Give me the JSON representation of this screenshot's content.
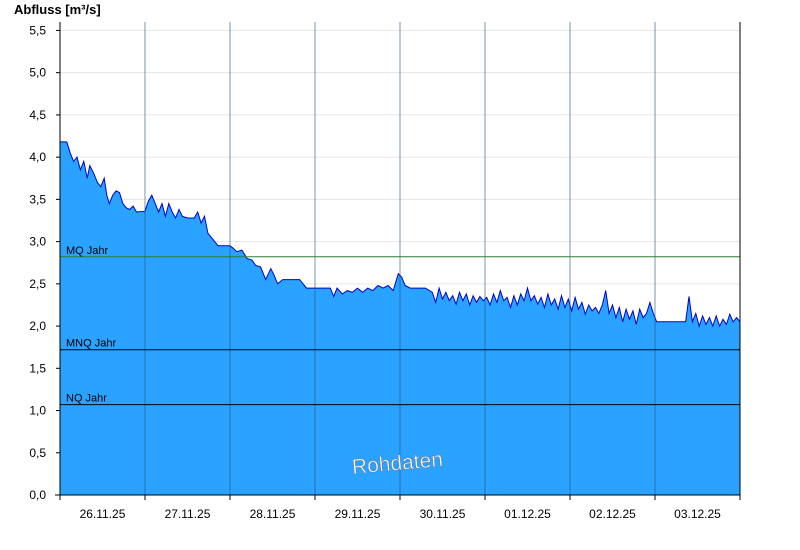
{
  "chart_data": {
    "type": "area",
    "ylabel": "Abfluss [m³/s]",
    "ylim": [
      0,
      5.6
    ],
    "y_ticks": [
      0,
      0.5,
      1.0,
      1.5,
      2.0,
      2.5,
      3.0,
      3.5,
      4.0,
      4.5,
      5.0,
      5.5
    ],
    "y_tick_labels": [
      "0,0",
      "0,5",
      "1,0",
      "1,5",
      "2,0",
      "2,5",
      "3,0",
      "3,5",
      "4,0",
      "4,5",
      "5,0",
      "5,5"
    ],
    "x_range_days": [
      0,
      8
    ],
    "x_tick_labels": [
      "26.11.25",
      "27.11.25",
      "28.11.25",
      "29.11.25",
      "30.11.25",
      "01.12.25",
      "02.12.25",
      "03.12.25"
    ],
    "grid": true,
    "fill_color": "#29a3ff",
    "line_color": "#0000cc",
    "series": [
      {
        "points": [
          [
            0.0,
            4.18
          ],
          [
            0.08,
            4.18
          ],
          [
            0.12,
            4.05
          ],
          [
            0.16,
            3.95
          ],
          [
            0.2,
            4.0
          ],
          [
            0.24,
            3.85
          ],
          [
            0.28,
            3.95
          ],
          [
            0.32,
            3.75
          ],
          [
            0.35,
            3.9
          ],
          [
            0.4,
            3.8
          ],
          [
            0.44,
            3.7
          ],
          [
            0.48,
            3.65
          ],
          [
            0.52,
            3.75
          ],
          [
            0.55,
            3.55
          ],
          [
            0.58,
            3.45
          ],
          [
            0.62,
            3.55
          ],
          [
            0.66,
            3.6
          ],
          [
            0.7,
            3.58
          ],
          [
            0.74,
            3.45
          ],
          [
            0.78,
            3.4
          ],
          [
            0.82,
            3.38
          ],
          [
            0.86,
            3.42
          ],
          [
            0.9,
            3.35
          ],
          [
            1.0,
            3.36
          ],
          [
            1.04,
            3.48
          ],
          [
            1.08,
            3.55
          ],
          [
            1.12,
            3.45
          ],
          [
            1.16,
            3.35
          ],
          [
            1.2,
            3.45
          ],
          [
            1.24,
            3.3
          ],
          [
            1.28,
            3.45
          ],
          [
            1.32,
            3.35
          ],
          [
            1.36,
            3.28
          ],
          [
            1.4,
            3.38
          ],
          [
            1.44,
            3.3
          ],
          [
            1.5,
            3.28
          ],
          [
            1.58,
            3.28
          ],
          [
            1.62,
            3.35
          ],
          [
            1.66,
            3.22
          ],
          [
            1.7,
            3.3
          ],
          [
            1.74,
            3.1
          ],
          [
            1.78,
            3.05
          ],
          [
            1.82,
            3.0
          ],
          [
            1.86,
            2.95
          ],
          [
            2.0,
            2.95
          ],
          [
            2.04,
            2.92
          ],
          [
            2.08,
            2.88
          ],
          [
            2.14,
            2.9
          ],
          [
            2.2,
            2.8
          ],
          [
            2.26,
            2.78
          ],
          [
            2.3,
            2.72
          ],
          [
            2.36,
            2.7
          ],
          [
            2.42,
            2.55
          ],
          [
            2.48,
            2.68
          ],
          [
            2.52,
            2.6
          ],
          [
            2.56,
            2.5
          ],
          [
            2.62,
            2.55
          ],
          [
            2.68,
            2.55
          ],
          [
            2.76,
            2.55
          ],
          [
            2.82,
            2.55
          ],
          [
            2.9,
            2.45
          ],
          [
            3.0,
            2.45
          ],
          [
            3.1,
            2.45
          ],
          [
            3.18,
            2.45
          ],
          [
            3.22,
            2.35
          ],
          [
            3.26,
            2.45
          ],
          [
            3.32,
            2.38
          ],
          [
            3.38,
            2.42
          ],
          [
            3.44,
            2.4
          ],
          [
            3.5,
            2.45
          ],
          [
            3.56,
            2.4
          ],
          [
            3.62,
            2.45
          ],
          [
            3.68,
            2.42
          ],
          [
            3.74,
            2.48
          ],
          [
            3.8,
            2.45
          ],
          [
            3.86,
            2.48
          ],
          [
            3.92,
            2.42
          ],
          [
            3.98,
            2.62
          ],
          [
            4.02,
            2.58
          ],
          [
            4.06,
            2.48
          ],
          [
            4.12,
            2.45
          ],
          [
            4.2,
            2.45
          ],
          [
            4.3,
            2.45
          ],
          [
            4.38,
            2.4
          ],
          [
            4.42,
            2.28
          ],
          [
            4.46,
            2.45
          ],
          [
            4.5,
            2.32
          ],
          [
            4.54,
            2.4
          ],
          [
            4.58,
            2.3
          ],
          [
            4.62,
            2.36
          ],
          [
            4.66,
            2.26
          ],
          [
            4.7,
            2.4
          ],
          [
            4.74,
            2.3
          ],
          [
            4.78,
            2.38
          ],
          [
            4.82,
            2.25
          ],
          [
            4.86,
            2.36
          ],
          [
            4.9,
            2.28
          ],
          [
            4.94,
            2.35
          ],
          [
            4.98,
            2.3
          ],
          [
            5.02,
            2.34
          ],
          [
            5.06,
            2.25
          ],
          [
            5.1,
            2.38
          ],
          [
            5.14,
            2.28
          ],
          [
            5.18,
            2.42
          ],
          [
            5.22,
            2.3
          ],
          [
            5.26,
            2.34
          ],
          [
            5.3,
            2.22
          ],
          [
            5.34,
            2.36
          ],
          [
            5.38,
            2.25
          ],
          [
            5.42,
            2.38
          ],
          [
            5.46,
            2.3
          ],
          [
            5.5,
            2.45
          ],
          [
            5.54,
            2.3
          ],
          [
            5.58,
            2.36
          ],
          [
            5.62,
            2.26
          ],
          [
            5.66,
            2.34
          ],
          [
            5.7,
            2.22
          ],
          [
            5.74,
            2.38
          ],
          [
            5.78,
            2.25
          ],
          [
            5.82,
            2.32
          ],
          [
            5.86,
            2.2
          ],
          [
            5.9,
            2.36
          ],
          [
            5.94,
            2.22
          ],
          [
            5.98,
            2.32
          ],
          [
            6.02,
            2.18
          ],
          [
            6.06,
            2.34
          ],
          [
            6.1,
            2.2
          ],
          [
            6.14,
            2.28
          ],
          [
            6.18,
            2.14
          ],
          [
            6.22,
            2.25
          ],
          [
            6.26,
            2.18
          ],
          [
            6.3,
            2.22
          ],
          [
            6.34,
            2.15
          ],
          [
            6.38,
            2.25
          ],
          [
            6.42,
            2.42
          ],
          [
            6.46,
            2.15
          ],
          [
            6.5,
            2.25
          ],
          [
            6.54,
            2.1
          ],
          [
            6.58,
            2.22
          ],
          [
            6.62,
            2.05
          ],
          [
            6.66,
            2.2
          ],
          [
            6.7,
            2.08
          ],
          [
            6.74,
            2.18
          ],
          [
            6.78,
            2.02
          ],
          [
            6.82,
            2.2
          ],
          [
            6.86,
            2.1
          ],
          [
            6.9,
            2.15
          ],
          [
            6.94,
            2.28
          ],
          [
            6.98,
            2.15
          ],
          [
            7.02,
            2.05
          ],
          [
            7.1,
            2.05
          ],
          [
            7.2,
            2.05
          ],
          [
            7.3,
            2.05
          ],
          [
            7.36,
            2.05
          ],
          [
            7.4,
            2.35
          ],
          [
            7.44,
            2.05
          ],
          [
            7.48,
            2.15
          ],
          [
            7.52,
            2.0
          ],
          [
            7.56,
            2.12
          ],
          [
            7.6,
            2.02
          ],
          [
            7.64,
            2.1
          ],
          [
            7.68,
            2.0
          ],
          [
            7.72,
            2.12
          ],
          [
            7.76,
            2.0
          ],
          [
            7.8,
            2.08
          ],
          [
            7.84,
            2.02
          ],
          [
            7.88,
            2.14
          ],
          [
            7.92,
            2.05
          ],
          [
            7.96,
            2.1
          ],
          [
            8.0,
            2.05
          ]
        ]
      }
    ],
    "reference_lines": [
      {
        "label": "MQ Jahr",
        "value": 2.82,
        "color": "#2e7d32"
      },
      {
        "label": "MNQ Jahr",
        "value": 1.72,
        "color": "#000000"
      },
      {
        "label": "NQ Jahr",
        "value": 1.07,
        "color": "#000000"
      }
    ],
    "watermark": "Rohdaten"
  }
}
